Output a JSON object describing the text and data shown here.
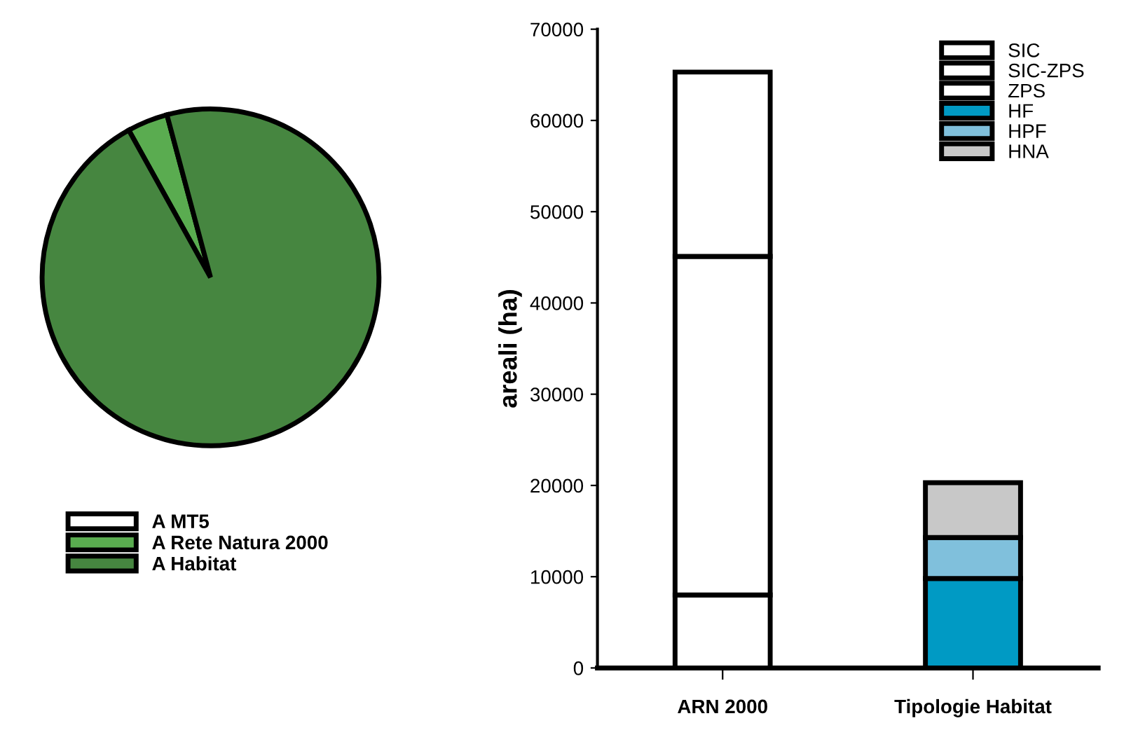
{
  "chart_data": [
    {
      "type": "pie",
      "categories": [
        "A MT5",
        "A Rete Natura 2000",
        "A Habitat"
      ],
      "values": [
        0,
        3.9,
        96.1
      ],
      "colors": [
        "#ffffff",
        "#5aac50",
        "#468640"
      ],
      "legend": "bottom"
    },
    {
      "type": "bar",
      "stacked": true,
      "categories": [
        "ARN 2000",
        "Tipologie Habitat"
      ],
      "ylabel": "areali (ha)",
      "ylim": [
        0,
        70000
      ],
      "yticks": [
        0,
        10000,
        20000,
        30000,
        40000,
        50000,
        60000,
        70000
      ],
      "grid": false,
      "legend": "top right",
      "series": [
        {
          "name": "SIC",
          "color": "#ffffff",
          "values": [
            8000,
            null
          ]
        },
        {
          "name": "SIC-ZPS",
          "color": "#ffffff",
          "values": [
            37100,
            null
          ]
        },
        {
          "name": "ZPS",
          "color": "#ffffff",
          "values": [
            20200,
            null
          ]
        },
        {
          "name": "HF",
          "color": "#009ac4",
          "values": [
            null,
            9800
          ]
        },
        {
          "name": "HPF",
          "color": "#80c0dc",
          "values": [
            null,
            4500
          ]
        },
        {
          "name": "HNA",
          "color": "#c8c8c8",
          "values": [
            null,
            6000
          ]
        }
      ]
    }
  ]
}
